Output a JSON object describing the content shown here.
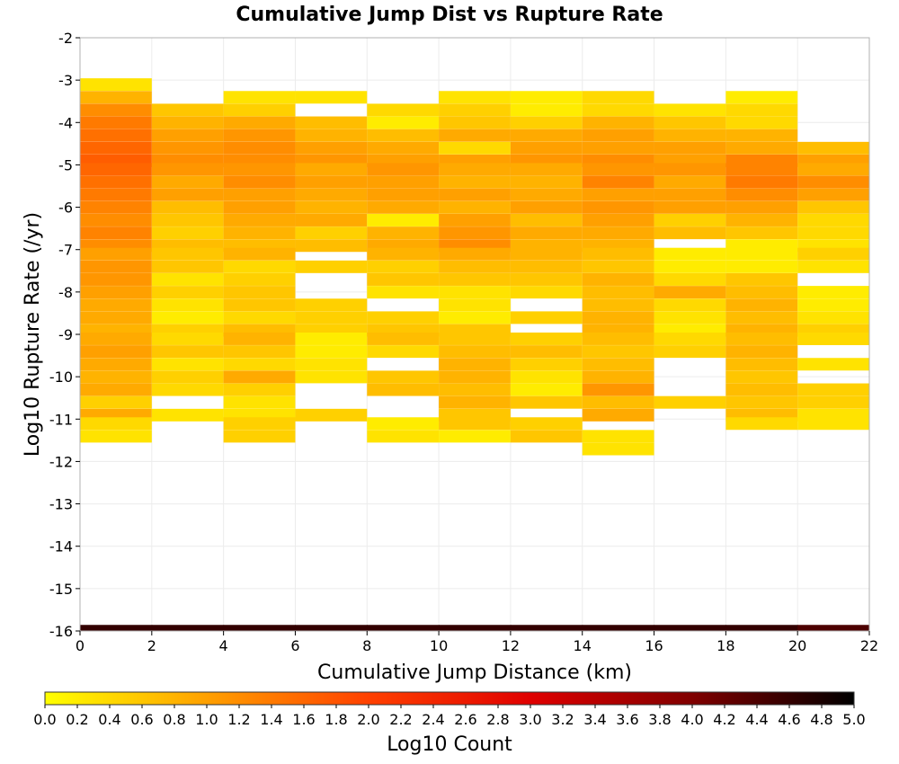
{
  "chart_data": {
    "type": "heatmap",
    "title": "Cumulative Jump Dist vs Rupture Rate",
    "xlabel": "Cumulative Jump Distance (km)",
    "ylabel": "Log10 Rupture Rate (/yr)",
    "colorbar_label": "Log10 Count",
    "x_ticks": [
      "0",
      "2",
      "4",
      "6",
      "8",
      "10",
      "12",
      "14",
      "16",
      "18",
      "20",
      "22"
    ],
    "y_ticks": [
      "-2",
      "-3",
      "-4",
      "-5",
      "-6",
      "-7",
      "-8",
      "-9",
      "-10",
      "-11",
      "-12",
      "-13",
      "-14",
      "-15",
      "-16"
    ],
    "colorbar_ticks": [
      "0.0",
      "0.2",
      "0.4",
      "0.6",
      "0.8",
      "1.0",
      "1.2",
      "1.4",
      "1.6",
      "1.8",
      "2.0",
      "2.2",
      "2.4",
      "2.6",
      "2.8",
      "3.0",
      "3.2",
      "3.4",
      "3.6",
      "3.8",
      "4.0",
      "4.2",
      "4.4",
      "4.6",
      "4.8",
      "5.0"
    ],
    "xlim": [
      0,
      22
    ],
    "ylim": [
      -16,
      -2
    ],
    "color_range": [
      0,
      5
    ],
    "colormap": [
      "#ffff00",
      "#ffa000",
      "#ff4000",
      "#e00000",
      "#800000",
      "#000000"
    ],
    "grid": true,
    "x_bin_width": 2,
    "y_bin_width": 0.286,
    "y_bin_origin": -2,
    "columns": [
      {
        "x": 1,
        "cells": [
          [
            -3.1,
            0.3
          ],
          [
            -3.4,
            0.8
          ],
          [
            -3.7,
            1.2
          ],
          [
            -4.0,
            1.4
          ],
          [
            -4.3,
            1.5
          ],
          [
            -4.6,
            1.6
          ],
          [
            -4.9,
            1.7
          ],
          [
            -5.1,
            1.6
          ],
          [
            -5.4,
            1.5
          ],
          [
            -5.7,
            1.4
          ],
          [
            -6.0,
            1.3
          ],
          [
            -6.3,
            1.2
          ],
          [
            -6.6,
            1.3
          ],
          [
            -6.9,
            1.2
          ],
          [
            -7.1,
            1.0
          ],
          [
            -7.4,
            1.1
          ],
          [
            -7.7,
            1.1
          ],
          [
            -8.0,
            1.0
          ],
          [
            -8.3,
            0.9
          ],
          [
            -8.6,
            0.9
          ],
          [
            -8.9,
            0.8
          ],
          [
            -9.1,
            0.9
          ],
          [
            -9.4,
            1.0
          ],
          [
            -9.7,
            0.9
          ],
          [
            -10.0,
            0.8
          ],
          [
            -10.3,
            0.9
          ],
          [
            -10.6,
            0.5
          ],
          [
            -10.9,
            0.9
          ],
          [
            -11.1,
            0.4
          ],
          [
            -11.4,
            0.3
          ]
        ]
      },
      {
        "x": 3,
        "cells": [
          [
            -3.7,
            0.6
          ],
          [
            -4.0,
            0.8
          ],
          [
            -4.3,
            1.0
          ],
          [
            -4.6,
            1.1
          ],
          [
            -4.9,
            1.2
          ],
          [
            -5.1,
            1.1
          ],
          [
            -5.4,
            0.9
          ],
          [
            -5.7,
            1.0
          ],
          [
            -6.0,
            0.7
          ],
          [
            -6.3,
            0.6
          ],
          [
            -6.6,
            0.5
          ],
          [
            -6.9,
            0.7
          ],
          [
            -7.1,
            0.6
          ],
          [
            -7.4,
            0.6
          ],
          [
            -7.7,
            0.3
          ],
          [
            -8.0,
            0.5
          ],
          [
            -8.3,
            0.3
          ],
          [
            -8.6,
            0.2
          ],
          [
            -8.9,
            0.5
          ],
          [
            -9.1,
            0.4
          ],
          [
            -9.4,
            0.6
          ],
          [
            -9.7,
            0.3
          ],
          [
            -10.0,
            0.5
          ],
          [
            -10.3,
            0.4
          ],
          [
            -10.9,
            0.3
          ]
        ]
      },
      {
        "x": 5,
        "cells": [
          [
            -3.4,
            0.3
          ],
          [
            -3.7,
            0.5
          ],
          [
            -4.0,
            0.9
          ],
          [
            -4.3,
            1.1
          ],
          [
            -4.6,
            1.2
          ],
          [
            -4.9,
            1.2
          ],
          [
            -5.1,
            1.1
          ],
          [
            -5.4,
            1.2
          ],
          [
            -5.7,
            1.0
          ],
          [
            -6.0,
            1.0
          ],
          [
            -6.3,
            0.9
          ],
          [
            -6.6,
            0.8
          ],
          [
            -6.9,
            0.7
          ],
          [
            -7.1,
            0.8
          ],
          [
            -7.4,
            0.4
          ],
          [
            -7.7,
            0.5
          ],
          [
            -8.0,
            0.6
          ],
          [
            -8.3,
            0.6
          ],
          [
            -8.6,
            0.4
          ],
          [
            -8.9,
            0.7
          ],
          [
            -9.1,
            0.8
          ],
          [
            -9.4,
            0.6
          ],
          [
            -9.7,
            0.4
          ],
          [
            -10.0,
            0.9
          ],
          [
            -10.3,
            0.5
          ],
          [
            -10.6,
            0.3
          ],
          [
            -10.9,
            0.3
          ],
          [
            -11.1,
            0.5
          ],
          [
            -11.4,
            0.5
          ]
        ]
      },
      {
        "x": 7,
        "cells": [
          [
            -3.4,
            0.3
          ],
          [
            -4.0,
            0.7
          ],
          [
            -4.3,
            0.8
          ],
          [
            -4.6,
            1.0
          ],
          [
            -4.9,
            1.1
          ],
          [
            -5.1,
            0.9
          ],
          [
            -5.4,
            1.0
          ],
          [
            -5.7,
            0.9
          ],
          [
            -6.0,
            0.8
          ],
          [
            -6.3,
            0.9
          ],
          [
            -6.6,
            0.5
          ],
          [
            -6.9,
            0.7
          ],
          [
            -7.4,
            0.5
          ],
          [
            -8.3,
            0.5
          ],
          [
            -8.6,
            0.5
          ],
          [
            -8.9,
            0.5
          ],
          [
            -9.1,
            0.2
          ],
          [
            -9.4,
            0.2
          ],
          [
            -9.7,
            0.3
          ],
          [
            -10.0,
            0.3
          ],
          [
            -10.9,
            0.5
          ]
        ]
      },
      {
        "x": 9,
        "cells": [
          [
            -3.7,
            0.4
          ],
          [
            -4.0,
            0.2
          ],
          [
            -4.3,
            0.7
          ],
          [
            -4.6,
            0.9
          ],
          [
            -4.9,
            1.0
          ],
          [
            -5.1,
            1.1
          ],
          [
            -5.4,
            1.0
          ],
          [
            -5.7,
            1.0
          ],
          [
            -6.0,
            0.9
          ],
          [
            -6.3,
            0.2
          ],
          [
            -6.6,
            0.8
          ],
          [
            -6.9,
            0.9
          ],
          [
            -7.1,
            0.8
          ],
          [
            -7.4,
            0.5
          ],
          [
            -7.7,
            0.6
          ],
          [
            -8.0,
            0.3
          ],
          [
            -8.6,
            0.5
          ],
          [
            -8.9,
            0.6
          ],
          [
            -9.1,
            0.7
          ],
          [
            -9.4,
            0.4
          ],
          [
            -10.0,
            0.6
          ],
          [
            -10.3,
            0.7
          ],
          [
            -11.1,
            0.2
          ],
          [
            -11.4,
            0.3
          ]
        ]
      },
      {
        "x": 11,
        "cells": [
          [
            -3.4,
            0.3
          ],
          [
            -3.7,
            0.5
          ],
          [
            -4.0,
            0.6
          ],
          [
            -4.3,
            0.9
          ],
          [
            -4.6,
            0.4
          ],
          [
            -4.9,
            1.0
          ],
          [
            -5.1,
            0.9
          ],
          [
            -5.4,
            0.8
          ],
          [
            -5.7,
            1.0
          ],
          [
            -6.0,
            0.8
          ],
          [
            -6.3,
            1.0
          ],
          [
            -6.6,
            1.1
          ],
          [
            -6.9,
            1.2
          ],
          [
            -7.1,
            0.9
          ],
          [
            -7.4,
            0.7
          ],
          [
            -7.7,
            0.6
          ],
          [
            -8.0,
            0.3
          ],
          [
            -8.3,
            0.3
          ],
          [
            -8.6,
            0.2
          ],
          [
            -8.9,
            0.6
          ],
          [
            -9.1,
            0.6
          ],
          [
            -9.4,
            0.7
          ],
          [
            -9.7,
            0.8
          ],
          [
            -10.0,
            0.8
          ],
          [
            -10.3,
            0.7
          ],
          [
            -10.6,
            0.8
          ],
          [
            -10.9,
            0.6
          ],
          [
            -11.1,
            0.6
          ],
          [
            -11.4,
            0.2
          ]
        ]
      },
      {
        "x": 13,
        "cells": [
          [
            -3.4,
            0.2
          ],
          [
            -3.7,
            0.2
          ],
          [
            -4.0,
            0.5
          ],
          [
            -4.3,
            0.9
          ],
          [
            -4.6,
            1.0
          ],
          [
            -4.9,
            1.1
          ],
          [
            -5.1,
            0.9
          ],
          [
            -5.4,
            0.8
          ],
          [
            -5.7,
            0.9
          ],
          [
            -6.0,
            1.0
          ],
          [
            -6.3,
            0.7
          ],
          [
            -6.6,
            0.9
          ],
          [
            -6.9,
            0.8
          ],
          [
            -7.1,
            0.8
          ],
          [
            -7.4,
            0.7
          ],
          [
            -7.7,
            0.6
          ],
          [
            -8.0,
            0.4
          ],
          [
            -8.6,
            0.5
          ],
          [
            -9.1,
            0.5
          ],
          [
            -9.4,
            0.7
          ],
          [
            -9.7,
            0.5
          ],
          [
            -10.0,
            0.3
          ],
          [
            -10.3,
            0.2
          ],
          [
            -10.6,
            0.6
          ],
          [
            -11.1,
            0.5
          ],
          [
            -11.4,
            0.6
          ]
        ]
      },
      {
        "x": 15,
        "cells": [
          [
            -3.4,
            0.4
          ],
          [
            -3.7,
            0.4
          ],
          [
            -4.0,
            0.8
          ],
          [
            -4.3,
            1.0
          ],
          [
            -4.6,
            1.0
          ],
          [
            -4.9,
            1.2
          ],
          [
            -5.1,
            1.1
          ],
          [
            -5.4,
            1.3
          ],
          [
            -5.7,
            1.0
          ],
          [
            -6.0,
            1.1
          ],
          [
            -6.3,
            1.0
          ],
          [
            -6.6,
            0.9
          ],
          [
            -6.9,
            0.8
          ],
          [
            -7.1,
            0.7
          ],
          [
            -7.4,
            0.6
          ],
          [
            -7.7,
            0.8
          ],
          [
            -8.0,
            0.7
          ],
          [
            -8.3,
            0.7
          ],
          [
            -8.6,
            0.8
          ],
          [
            -8.9,
            0.8
          ],
          [
            -9.1,
            0.7
          ],
          [
            -9.4,
            0.6
          ],
          [
            -9.7,
            0.7
          ],
          [
            -10.0,
            0.8
          ],
          [
            -10.3,
            1.1
          ],
          [
            -10.6,
            0.7
          ],
          [
            -10.9,
            0.9
          ],
          [
            -11.4,
            0.3
          ],
          [
            -11.7,
            0.3
          ]
        ]
      },
      {
        "x": 17,
        "cells": [
          [
            -3.7,
            0.3
          ],
          [
            -4.0,
            0.6
          ],
          [
            -4.3,
            0.8
          ],
          [
            -4.6,
            1.0
          ],
          [
            -4.9,
            1.0
          ],
          [
            -5.1,
            1.1
          ],
          [
            -5.4,
            0.9
          ],
          [
            -5.7,
            1.0
          ],
          [
            -6.0,
            1.0
          ],
          [
            -6.3,
            0.5
          ],
          [
            -6.6,
            0.7
          ],
          [
            -7.1,
            0.2
          ],
          [
            -7.4,
            0.2
          ],
          [
            -7.7,
            0.4
          ],
          [
            -8.0,
            0.9
          ],
          [
            -8.3,
            0.4
          ],
          [
            -8.6,
            0.3
          ],
          [
            -8.9,
            0.2
          ],
          [
            -9.1,
            0.4
          ],
          [
            -9.4,
            0.5
          ],
          [
            -10.6,
            0.5
          ]
        ]
      },
      {
        "x": 19,
        "cells": [
          [
            -3.4,
            0.2
          ],
          [
            -3.7,
            0.4
          ],
          [
            -4.0,
            0.4
          ],
          [
            -4.3,
            0.8
          ],
          [
            -4.6,
            0.9
          ],
          [
            -4.9,
            1.3
          ],
          [
            -5.1,
            1.3
          ],
          [
            -5.4,
            1.4
          ],
          [
            -5.7,
            1.2
          ],
          [
            -6.0,
            1.0
          ],
          [
            -6.3,
            0.8
          ],
          [
            -6.6,
            0.6
          ],
          [
            -6.9,
            0.2
          ],
          [
            -7.1,
            0.2
          ],
          [
            -7.4,
            0.2
          ],
          [
            -7.7,
            0.6
          ],
          [
            -8.0,
            0.7
          ],
          [
            -8.3,
            0.8
          ],
          [
            -8.6,
            0.7
          ],
          [
            -8.9,
            0.8
          ],
          [
            -9.1,
            0.7
          ],
          [
            -9.4,
            0.8
          ],
          [
            -9.7,
            0.7
          ],
          [
            -10.0,
            0.6
          ],
          [
            -10.3,
            0.7
          ],
          [
            -10.6,
            0.6
          ],
          [
            -10.9,
            0.7
          ],
          [
            -11.1,
            0.4
          ]
        ]
      },
      {
        "x": 21,
        "cells": [
          [
            -4.6,
            0.7
          ],
          [
            -4.9,
            1.0
          ],
          [
            -5.1,
            0.9
          ],
          [
            -5.4,
            1.2
          ],
          [
            -5.7,
            1.0
          ],
          [
            -6.0,
            0.6
          ],
          [
            -6.3,
            0.4
          ],
          [
            -6.6,
            0.4
          ],
          [
            -6.9,
            0.3
          ],
          [
            -7.1,
            0.5
          ],
          [
            -7.4,
            0.3
          ],
          [
            -8.0,
            0.2
          ],
          [
            -8.3,
            0.2
          ],
          [
            -8.6,
            0.3
          ],
          [
            -8.9,
            0.5
          ],
          [
            -9.1,
            0.4
          ],
          [
            -9.7,
            0.3
          ],
          [
            -10.3,
            0.5
          ],
          [
            -10.6,
            0.5
          ],
          [
            -10.9,
            0.3
          ],
          [
            -11.1,
            0.3
          ]
        ]
      }
    ],
    "bottom_row": {
      "y": -16,
      "values": [
        4.6,
        4.6,
        4.6,
        4.6,
        4.6,
        4.6,
        4.6,
        4.6,
        4.6,
        4.6,
        4.4
      ]
    }
  }
}
